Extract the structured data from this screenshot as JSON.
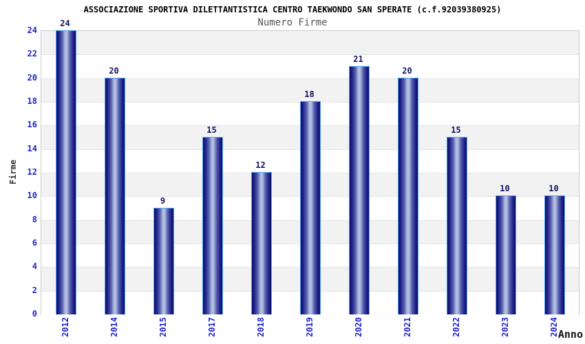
{
  "chart_data": {
    "type": "bar",
    "title": "ASSOCIAZIONE SPORTIVA DILETTANTISTICA CENTRO TAEKWONDO SAN SPERATE (c.f.92039380925)",
    "subtitle": "Numero Firme",
    "categories": [
      "2012",
      "2014",
      "2015",
      "2017",
      "2018",
      "2019",
      "2020",
      "2021",
      "2022",
      "2023",
      "2024"
    ],
    "values": [
      24,
      20,
      9,
      15,
      12,
      18,
      21,
      20,
      15,
      10,
      10
    ],
    "xlabel": "Anno",
    "ylabel": "Firme",
    "ylim": [
      0,
      24
    ],
    "ytick_step": 2,
    "yticks": [
      0,
      2,
      4,
      6,
      8,
      10,
      12,
      14,
      16,
      18,
      20,
      22,
      24
    ],
    "grid": "horizontal-bands-every-2-units",
    "legend": "none",
    "bar_value_labels_shown": true
  },
  "colors": {
    "tick_label": "#2222cc",
    "value_label": "#12125e",
    "bar_dark": "#0f0f68",
    "bar_light": "#b8c2e4",
    "bar_border": "#55a7f7",
    "band_gray": "#f2f2f2",
    "band_white": "#ffffff",
    "band_line": "#e4e4e4",
    "plot_border": "#cccccc",
    "title_color": "#000000",
    "subtitle_color": "#555555",
    "axis_title_color": "#333333"
  }
}
